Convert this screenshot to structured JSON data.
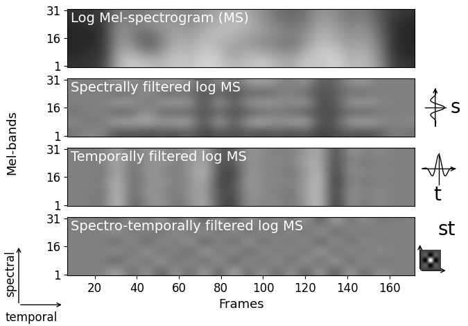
{
  "chart_data": [
    {
      "type": "heatmap",
      "title": "Log Mel-spectrogram (MS)",
      "xlim": [
        7,
        172
      ],
      "ylim": [
        0.5,
        31.5
      ],
      "yticks": [
        1,
        16,
        31
      ],
      "tick_labels": "y",
      "cell_range": [
        0,
        1
      ],
      "cells": [
        [
          0.2,
          0.2,
          0.25,
          0.7,
          0.8,
          0.75,
          0.7,
          0.8,
          0.75,
          0.85,
          0.8,
          0.7,
          0.75,
          0.8,
          0.7,
          0.65,
          0.8,
          0.75,
          0.85,
          0.7,
          0.75,
          0.6,
          0.25,
          0.2
        ],
        [
          0.15,
          0.2,
          0.2,
          0.65,
          0.7,
          0.5,
          0.6,
          0.75,
          0.7,
          0.8,
          0.75,
          0.6,
          0.7,
          0.65,
          0.6,
          0.55,
          0.7,
          0.8,
          0.8,
          0.65,
          0.7,
          0.55,
          0.2,
          0.15
        ],
        [
          0.15,
          0.15,
          0.2,
          0.6,
          0.55,
          0.35,
          0.5,
          0.7,
          0.65,
          0.75,
          0.7,
          0.65,
          0.6,
          0.55,
          0.5,
          0.45,
          0.6,
          0.75,
          0.7,
          0.6,
          0.65,
          0.5,
          0.2,
          0.15
        ],
        [
          0.15,
          0.15,
          0.2,
          0.6,
          0.5,
          0.4,
          0.55,
          0.65,
          0.6,
          0.7,
          0.75,
          0.7,
          0.65,
          0.6,
          0.55,
          0.5,
          0.55,
          0.7,
          0.65,
          0.55,
          0.6,
          0.45,
          0.2,
          0.15
        ],
        [
          0.15,
          0.2,
          0.2,
          0.55,
          0.5,
          0.55,
          0.6,
          0.6,
          0.55,
          0.65,
          0.7,
          0.75,
          0.7,
          0.6,
          0.5,
          0.45,
          0.5,
          0.65,
          0.6,
          0.5,
          0.55,
          0.4,
          0.2,
          0.15
        ],
        [
          0.2,
          0.2,
          0.25,
          0.5,
          0.45,
          0.5,
          0.55,
          0.55,
          0.5,
          0.6,
          0.65,
          0.7,
          0.65,
          0.55,
          0.45,
          0.4,
          0.45,
          0.6,
          0.55,
          0.45,
          0.5,
          0.35,
          0.25,
          0.2
        ]
      ]
    },
    {
      "type": "heatmap",
      "title": "Spectrally filtered log MS",
      "ylabel": "Mel-bands",
      "annotations": [
        "s"
      ],
      "xlim": [
        7,
        172
      ],
      "ylim": [
        0.5,
        31.5
      ],
      "yticks": [
        1,
        16,
        31
      ],
      "tick_labels": "y",
      "cell_range": [
        0,
        1
      ],
      "cells": [
        [
          0.45,
          0.55,
          0.5,
          0.3,
          0.35,
          0.3,
          0.35,
          0.3,
          0.4,
          0.25,
          0.35,
          0.3,
          0.35,
          0.3,
          0.35,
          0.3,
          0.35,
          0.25,
          0.3,
          0.35,
          0.3,
          0.35,
          0.5,
          0.45
        ],
        [
          0.55,
          0.45,
          0.5,
          0.7,
          0.65,
          0.7,
          0.6,
          0.7,
          0.65,
          0.3,
          0.7,
          0.35,
          0.65,
          0.7,
          0.6,
          0.65,
          0.7,
          0.3,
          0.35,
          0.65,
          0.7,
          0.6,
          0.5,
          0.55
        ],
        [
          0.45,
          0.5,
          0.5,
          0.35,
          0.4,
          0.6,
          0.4,
          0.35,
          0.4,
          0.3,
          0.4,
          0.3,
          0.35,
          0.4,
          0.45,
          0.4,
          0.35,
          0.3,
          0.3,
          0.4,
          0.35,
          0.45,
          0.5,
          0.5
        ],
        [
          0.5,
          0.5,
          0.5,
          0.65,
          0.6,
          0.45,
          0.6,
          0.65,
          0.6,
          0.3,
          0.65,
          0.35,
          0.6,
          0.65,
          0.6,
          0.55,
          0.65,
          0.3,
          0.35,
          0.6,
          0.65,
          0.55,
          0.5,
          0.5
        ],
        [
          0.5,
          0.5,
          0.5,
          0.4,
          0.45,
          0.6,
          0.4,
          0.4,
          0.45,
          0.3,
          0.4,
          0.3,
          0.4,
          0.35,
          0.45,
          0.5,
          0.4,
          0.3,
          0.35,
          0.45,
          0.4,
          0.5,
          0.5,
          0.5
        ],
        [
          0.5,
          0.5,
          0.5,
          0.6,
          0.55,
          0.5,
          0.6,
          0.6,
          0.55,
          0.35,
          0.6,
          0.4,
          0.6,
          0.65,
          0.55,
          0.5,
          0.6,
          0.35,
          0.4,
          0.55,
          0.6,
          0.5,
          0.5,
          0.5
        ]
      ]
    },
    {
      "type": "heatmap",
      "title": "Temporally filtered log MS",
      "annotations": [
        "t"
      ],
      "xlim": [
        7,
        172
      ],
      "ylim": [
        0.5,
        31.5
      ],
      "yticks": [
        1,
        16,
        31
      ],
      "tick_labels": "y",
      "cell_range": [
        0,
        1
      ],
      "cells": [
        [
          0.5,
          0.5,
          0.45,
          0.8,
          0.35,
          0.55,
          0.6,
          0.45,
          0.55,
          0.7,
          0.3,
          0.25,
          0.6,
          0.5,
          0.55,
          0.45,
          0.6,
          0.8,
          0.15,
          0.6,
          0.45,
          0.55,
          0.5,
          0.5
        ],
        [
          0.5,
          0.5,
          0.45,
          0.75,
          0.4,
          0.6,
          0.55,
          0.45,
          0.6,
          0.65,
          0.3,
          0.3,
          0.6,
          0.55,
          0.5,
          0.45,
          0.65,
          0.75,
          0.2,
          0.6,
          0.5,
          0.55,
          0.5,
          0.5
        ],
        [
          0.5,
          0.5,
          0.5,
          0.75,
          0.4,
          0.55,
          0.6,
          0.5,
          0.55,
          0.7,
          0.25,
          0.3,
          0.65,
          0.5,
          0.55,
          0.5,
          0.6,
          0.8,
          0.15,
          0.55,
          0.45,
          0.5,
          0.5,
          0.5
        ],
        [
          0.5,
          0.5,
          0.45,
          0.7,
          0.4,
          0.6,
          0.55,
          0.45,
          0.6,
          0.75,
          0.3,
          0.25,
          0.6,
          0.55,
          0.5,
          0.45,
          0.6,
          0.75,
          0.2,
          0.6,
          0.5,
          0.55,
          0.5,
          0.5
        ],
        [
          0.5,
          0.5,
          0.5,
          0.7,
          0.45,
          0.55,
          0.6,
          0.5,
          0.55,
          0.7,
          0.3,
          0.35,
          0.6,
          0.5,
          0.55,
          0.5,
          0.65,
          0.7,
          0.25,
          0.55,
          0.45,
          0.5,
          0.5,
          0.5
        ],
        [
          0.5,
          0.5,
          0.5,
          0.65,
          0.45,
          0.6,
          0.55,
          0.5,
          0.6,
          0.65,
          0.35,
          0.35,
          0.6,
          0.55,
          0.5,
          0.5,
          0.6,
          0.7,
          0.25,
          0.6,
          0.5,
          0.55,
          0.5,
          0.5
        ]
      ]
    },
    {
      "type": "heatmap",
      "title": "Spectro-temporally filtered log MS",
      "xlabel": "Frames",
      "annotations": [
        "st"
      ],
      "xlim": [
        7,
        172
      ],
      "ylim": [
        0.5,
        31.5
      ],
      "yticks": [
        1,
        16,
        31
      ],
      "xticks": [
        20,
        40,
        60,
        80,
        100,
        120,
        140,
        160
      ],
      "cell_range": [
        0,
        1
      ],
      "cells": [
        [
          0.5,
          0.5,
          0.5,
          0.7,
          0.35,
          0.65,
          0.3,
          0.65,
          0.35,
          0.7,
          0.3,
          0.75,
          0.35,
          0.65,
          0.35,
          0.65,
          0.3,
          0.7,
          0.25,
          0.7,
          0.35,
          0.6,
          0.5,
          0.5
        ],
        [
          0.5,
          0.5,
          0.5,
          0.3,
          0.65,
          0.35,
          0.7,
          0.35,
          0.65,
          0.3,
          0.7,
          0.25,
          0.65,
          0.35,
          0.65,
          0.35,
          0.7,
          0.3,
          0.75,
          0.3,
          0.65,
          0.4,
          0.5,
          0.5
        ],
        [
          0.5,
          0.5,
          0.5,
          0.65,
          0.35,
          0.7,
          0.35,
          0.6,
          0.3,
          0.75,
          0.35,
          0.7,
          0.3,
          0.65,
          0.4,
          0.6,
          0.35,
          0.75,
          0.3,
          0.65,
          0.4,
          0.6,
          0.5,
          0.5
        ],
        [
          0.5,
          0.5,
          0.5,
          0.35,
          0.65,
          0.3,
          0.65,
          0.4,
          0.7,
          0.25,
          0.65,
          0.3,
          0.7,
          0.35,
          0.6,
          0.4,
          0.65,
          0.25,
          0.7,
          0.35,
          0.6,
          0.45,
          0.5,
          0.5
        ],
        [
          0.5,
          0.5,
          0.5,
          0.65,
          0.4,
          0.6,
          0.35,
          0.65,
          0.35,
          0.7,
          0.35,
          0.65,
          0.35,
          0.6,
          0.4,
          0.6,
          0.35,
          0.7,
          0.3,
          0.6,
          0.4,
          0.55,
          0.5,
          0.5
        ],
        [
          0.5,
          0.5,
          0.5,
          0.4,
          0.6,
          0.4,
          0.65,
          0.35,
          0.65,
          0.3,
          0.65,
          0.35,
          0.65,
          0.4,
          0.6,
          0.4,
          0.65,
          0.3,
          0.7,
          0.4,
          0.6,
          0.45,
          0.5,
          0.5
        ]
      ]
    }
  ],
  "axis_arrows": [
    "spectral",
    "temporal"
  ]
}
